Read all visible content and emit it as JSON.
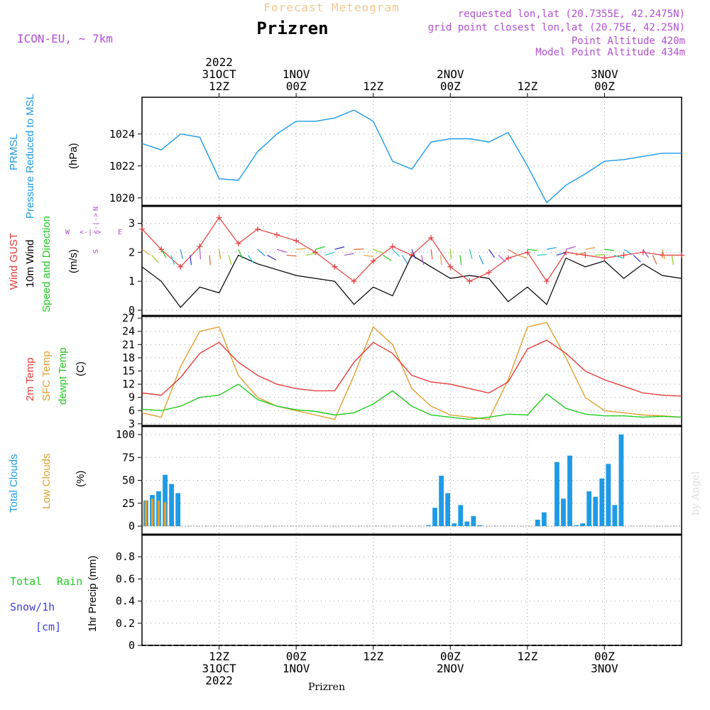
{
  "header": {
    "product": "Forecast Meteogram",
    "place": "Prizren",
    "model": "ICON-EU, ~ 7km",
    "requested": "requested lon,lat (20.7355E, 42.2475N)",
    "gridpoint": "grid point closest lon,lat (20.75E, 42.25N)",
    "point_alt": "Point Altitude 420m",
    "model_alt": "Model Point Altitude 434m",
    "footer_place": "Prizren",
    "credit": "by Angel"
  },
  "colors": {
    "pressure": "#1e9be6",
    "gust": "#e63c3c",
    "wind10m": "#000000",
    "temp2m": "#e63c3c",
    "sfctemp": "#e0a030",
    "dewpt": "#22cc22",
    "totalclouds": "#1e9be6",
    "lowclouds": "#e0a030",
    "rain": "#22cc22",
    "snow": "#4040e0",
    "label_purple": "#b050d0"
  },
  "time_axis": {
    "top_labels": [
      {
        "lines": [
          "2022",
          "31OCT",
          "12Z"
        ]
      },
      {
        "lines": [
          "1NOV",
          "00Z"
        ]
      },
      {
        "lines": [
          "12Z"
        ]
      },
      {
        "lines": [
          "2NOV",
          "00Z"
        ]
      },
      {
        "lines": [
          "12Z"
        ]
      },
      {
        "lines": [
          "3NOV",
          "00Z"
        ]
      }
    ],
    "bottom_labels": [
      {
        "lines": [
          "12Z",
          "31OCT",
          "2022"
        ]
      },
      {
        "lines": [
          "00Z",
          "1NOV"
        ]
      },
      {
        "lines": [
          "12Z"
        ]
      },
      {
        "lines": [
          "00Z",
          "2NOV"
        ]
      },
      {
        "lines": [
          "12Z"
        ]
      },
      {
        "lines": [
          "00Z",
          "3NOV"
        ]
      }
    ]
  },
  "panels": {
    "pressure": {
      "labels": [
        "PRMSL",
        "Pressure Reduced to MSL"
      ],
      "unit": "(hPa)",
      "ticks": [
        "1020",
        "1022",
        "1024"
      ]
    },
    "wind": {
      "labels": [
        "Wind GUST",
        "10m Wind",
        "Speed and Direction"
      ],
      "unit": "(m/s)",
      "ticks": [
        "0",
        "1",
        "2",
        "3"
      ],
      "compass": {
        "n": "N",
        "s": "S",
        "w": "W",
        "e": "E",
        "cross": "<-|->"
      }
    },
    "temp": {
      "labels": [
        "2m Temp",
        "SFC Temp",
        "dewpt Temp"
      ],
      "unit": "(C)",
      "ticks": [
        "3",
        "6",
        "9",
        "12",
        "15",
        "18",
        "21",
        "24",
        "27"
      ]
    },
    "clouds": {
      "labels": [
        "Total Clouds",
        "Low Clouds"
      ],
      "unit": "(%)",
      "ticks": [
        "0",
        "25",
        "50",
        "75",
        "100"
      ]
    },
    "precip": {
      "labels": [
        "Total",
        "Rain",
        "Snow/1h",
        "[cm]"
      ],
      "unit": "1hr Precip (mm)",
      "ticks": [
        "0",
        "0.2",
        "0.4",
        "0.6",
        "0.8"
      ]
    }
  },
  "chart_data": [
    {
      "type": "line",
      "title": "PRMSL",
      "ylabel": "Pressure Reduced to MSL (hPa)",
      "x_hours": [
        0,
        3,
        6,
        9,
        12,
        15,
        18,
        21,
        24,
        27,
        30,
        33,
        36,
        39,
        42,
        45,
        48,
        51,
        54,
        57,
        60,
        63,
        66,
        69,
        72,
        75,
        78,
        81,
        84
      ],
      "ylim": [
        1019.5,
        1026.3
      ],
      "series": [
        {
          "name": "PRMSL",
          "values": [
            1023.4,
            1023.0,
            1024.0,
            1023.8,
            1021.2,
            1021.1,
            1022.9,
            1024.0,
            1024.8,
            1024.8,
            1025.0,
            1025.5,
            1024.8,
            1022.3,
            1021.8,
            1023.5,
            1023.7,
            1023.7,
            1023.5,
            1024.1,
            1022.0,
            1019.7,
            1020.8,
            1021.5,
            1022.3,
            1022.4,
            1022.6,
            1022.8,
            1022.8
          ]
        }
      ]
    },
    {
      "type": "line",
      "title": "Wind",
      "ylabel": "(m/s)",
      "x_hours": [
        0,
        3,
        6,
        9,
        12,
        15,
        18,
        21,
        24,
        27,
        30,
        33,
        36,
        39,
        42,
        45,
        48,
        51,
        54,
        57,
        60,
        63,
        66,
        69,
        72,
        75,
        78,
        81,
        84
      ],
      "ylim": [
        0,
        3.6
      ],
      "series": [
        {
          "name": "Wind GUST",
          "values": [
            2.8,
            2.1,
            1.5,
            2.2,
            3.2,
            2.3,
            2.8,
            2.6,
            2.4,
            2.0,
            1.5,
            1.0,
            1.7,
            2.2,
            1.9,
            2.5,
            1.5,
            1.0,
            1.3,
            1.8,
            2.0,
            1.0,
            2.0,
            1.9,
            1.8,
            1.9,
            2.0,
            1.9,
            1.9
          ]
        },
        {
          "name": "10m Wind",
          "values": [
            1.5,
            1.0,
            0.1,
            0.8,
            0.6,
            1.9,
            1.6,
            1.4,
            1.2,
            1.1,
            1.0,
            0.2,
            0.8,
            0.5,
            1.9,
            1.5,
            1.1,
            1.2,
            1.1,
            0.3,
            0.8,
            0.2,
            1.8,
            1.5,
            1.7,
            1.1,
            1.6,
            1.2,
            1.1
          ]
        }
      ]
    },
    {
      "type": "line",
      "title": "Temperature",
      "ylabel": "(C)",
      "x_hours": [
        0,
        3,
        6,
        9,
        12,
        15,
        18,
        21,
        24,
        27,
        30,
        33,
        36,
        39,
        42,
        45,
        48,
        51,
        54,
        57,
        60,
        63,
        66,
        69,
        72,
        75,
        78,
        81,
        84
      ],
      "ylim": [
        2.5,
        27.5
      ],
      "series": [
        {
          "name": "2m Temp",
          "values": [
            10,
            9.5,
            13.5,
            19,
            21.5,
            17,
            14,
            12,
            11,
            10.5,
            10.5,
            17,
            21.5,
            19,
            14,
            12.5,
            12,
            11,
            10,
            12.5,
            20,
            22,
            19,
            15,
            13,
            11.5,
            10,
            9.5,
            9.3
          ]
        },
        {
          "name": "SFC Temp",
          "values": [
            5.5,
            4.5,
            16,
            24,
            25,
            14,
            9,
            7,
            6,
            5,
            4,
            14,
            25,
            21,
            11,
            7,
            5,
            4.5,
            4,
            13,
            25,
            26,
            18,
            9,
            6,
            5.5,
            5,
            4.8,
            4.5
          ]
        },
        {
          "name": "dewpt Temp",
          "values": [
            6.3,
            6,
            7,
            9,
            9.5,
            12,
            8.5,
            7,
            6.2,
            5.8,
            5,
            5.5,
            7.5,
            10.5,
            7,
            5,
            4.5,
            4,
            4.5,
            5.2,
            5,
            9.8,
            6.5,
            5.2,
            4.8,
            4.8,
            4.5,
            4.7,
            4.5
          ]
        }
      ]
    },
    {
      "type": "bar",
      "title": "Clouds",
      "ylabel": "(%)",
      "ylim": [
        0,
        100
      ],
      "x_hours": [
        0,
        1,
        2,
        3,
        4,
        5,
        44,
        45,
        46,
        47,
        48,
        49,
        50,
        51,
        52,
        53,
        60,
        61,
        62,
        63,
        64,
        65,
        66,
        67,
        68,
        69,
        70,
        71,
        72,
        73,
        74,
        75,
        76,
        77,
        78
      ],
      "series": [
        {
          "name": "Total Clouds",
          "values": [
            28,
            34,
            38,
            56,
            46,
            36,
            1,
            20,
            55,
            36,
            3,
            23,
            5,
            11,
            1,
            0,
            0,
            7,
            15,
            0,
            70,
            30,
            77,
            1,
            3,
            38,
            32,
            52,
            68,
            23,
            100,
            0,
            0,
            0,
            0
          ]
        },
        {
          "name": "Low Clouds",
          "values": [
            28,
            30,
            28,
            26,
            0,
            0,
            0,
            0,
            0,
            0,
            0,
            0,
            0,
            0,
            0,
            0,
            0,
            0,
            0,
            0,
            0,
            0,
            0,
            0,
            0,
            0,
            0,
            0,
            0,
            0,
            0,
            0,
            0,
            0,
            0
          ]
        }
      ]
    },
    {
      "type": "line",
      "title": "1hr Precip",
      "ylabel": "1hr Precip (mm)",
      "ylim": [
        0,
        1.0
      ],
      "x_hours": [
        0,
        84
      ],
      "series": [
        {
          "name": "Total Rain",
          "values": [
            0,
            0
          ]
        },
        {
          "name": "Snow/1h",
          "values": [
            0,
            0
          ]
        }
      ]
    }
  ]
}
